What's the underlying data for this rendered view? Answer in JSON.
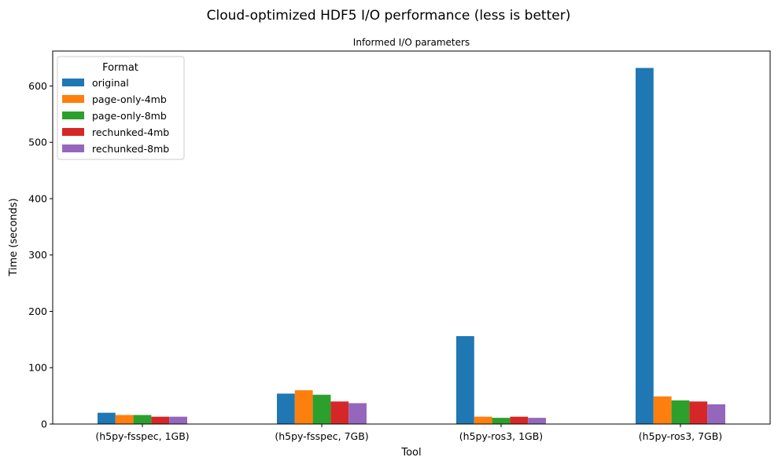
{
  "chart_data": {
    "type": "bar",
    "title": "Cloud-optimized HDF5 I/O performance (less is better)",
    "subtitle": "Informed I/O parameters",
    "xlabel": "Tool",
    "ylabel": "Time (seconds)",
    "ylim": [
      0,
      662
    ],
    "yticks": [
      0,
      100,
      200,
      300,
      400,
      500,
      600
    ],
    "grid": false,
    "legend": {
      "title": "Format",
      "placement": "top-left"
    },
    "categories": [
      "(h5py-fsspec, 1GB)",
      "(h5py-fsspec, 7GB)",
      "(h5py-ros3, 1GB)",
      "(h5py-ros3, 7GB)"
    ],
    "series": [
      {
        "name": "original",
        "color": "#1f77b4",
        "values": [
          20,
          54,
          156,
          632
        ]
      },
      {
        "name": "page-only-4mb",
        "color": "#ff7f0e",
        "values": [
          16,
          60,
          13,
          49
        ]
      },
      {
        "name": "page-only-8mb",
        "color": "#2ca02c",
        "values": [
          16,
          52,
          11,
          42
        ]
      },
      {
        "name": "rechunked-4mb",
        "color": "#d62728",
        "values": [
          13,
          40,
          13,
          40
        ]
      },
      {
        "name": "rechunked-8mb",
        "color": "#9467bd",
        "values": [
          13,
          37,
          11,
          35
        ]
      }
    ]
  }
}
